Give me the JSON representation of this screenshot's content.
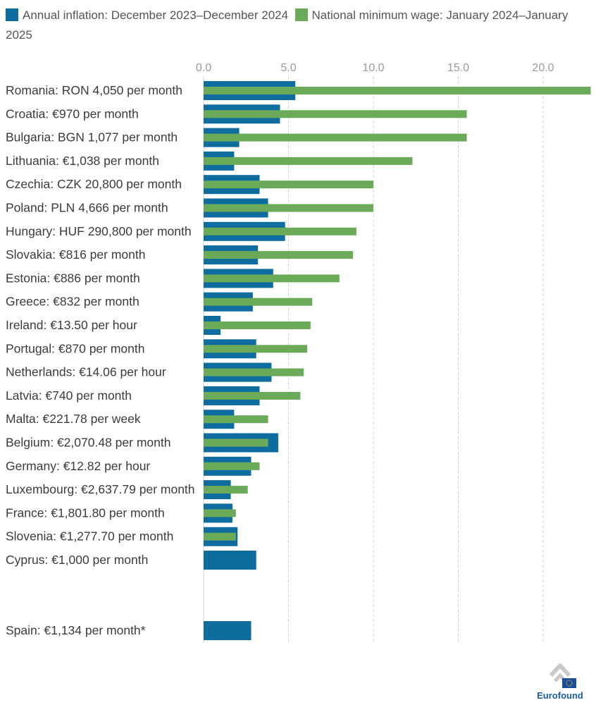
{
  "legend": [
    {
      "label": "Annual inflation: December 2023–December 2024",
      "color": "#0e6c9e"
    },
    {
      "label": "National minimum wage: January 2024–January 2025",
      "color": "#6aaa58"
    }
  ],
  "chart_data": {
    "type": "bar",
    "orientation": "horizontal",
    "xlim": [
      0,
      22.8
    ],
    "x_ticks": [
      "0.0",
      "5.0",
      "10.0",
      "15.0",
      "20.0"
    ],
    "x_tick_values": [
      0,
      5,
      10,
      15,
      20
    ],
    "grid": "vertical dashed",
    "legend_position": "top",
    "categories": [
      "Romania: RON 4,050 per month",
      "Croatia: €970 per month",
      "Bulgaria: BGN 1,077 per month",
      "Lithuania: €1,038 per month",
      "Czechia: CZK 20,800 per month",
      "Poland: PLN 4,666 per month",
      "Hungary: HUF 290,800 per month",
      "Slovakia: €816 per month",
      "Estonia: €886 per month",
      "Greece: €832 per month",
      "Ireland: €13.50 per hour",
      "Portugal: €870 per month",
      "Netherlands: €14.06 per hour",
      "Latvia: €740 per month",
      "Malta: €221.78 per week",
      "Belgium: €2,070.48 per month",
      "Germany: €12.82 per hour",
      "Luxembourg: €2,637.79 per month",
      "France: €1,801.80 per month",
      "Slovenia: €1,277.70 per month",
      "Cyprus: €1,000 per month",
      "Spain: €1,134 per month*"
    ],
    "series": [
      {
        "name": "Annual inflation: December 2023–December 2024",
        "values": [
          5.4,
          4.5,
          2.1,
          1.8,
          3.3,
          3.8,
          4.8,
          3.2,
          4.1,
          2.9,
          1.0,
          3.1,
          4.0,
          3.3,
          1.8,
          4.4,
          2.8,
          1.6,
          1.7,
          2.0,
          3.1,
          2.8
        ]
      },
      {
        "name": "National minimum wage: January 2024–January 2025",
        "values": [
          22.8,
          15.5,
          15.5,
          12.3,
          10.0,
          10.0,
          9.0,
          8.8,
          8.0,
          6.4,
          6.3,
          6.1,
          5.9,
          5.7,
          3.8,
          3.8,
          3.3,
          2.6,
          1.9,
          1.9,
          null,
          null
        ]
      }
    ]
  },
  "logo": {
    "text": "Eurofound"
  }
}
